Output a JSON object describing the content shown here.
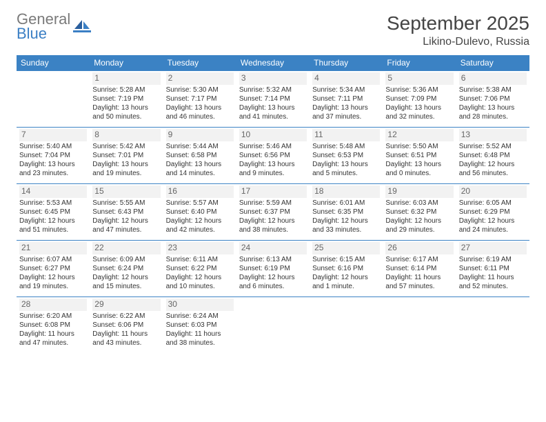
{
  "brand": {
    "line1": "General",
    "line2": "Blue"
  },
  "title": "September 2025",
  "location": "Likino-Dulevo, Russia",
  "colors": {
    "header_bg": "#3b82c4",
    "header_text": "#ffffff",
    "rule": "#3b82c4",
    "daynum_bg": "#f2f2f2",
    "daynum_text": "#666666",
    "body_text": "#333333",
    "logo_gray": "#7a7a7a",
    "logo_blue": "#3b7fc4",
    "page_bg": "#ffffff"
  },
  "typography": {
    "title_fontsize": 28,
    "location_fontsize": 16,
    "header_fontsize": 12,
    "daynum_fontsize": 12,
    "cell_fontsize": 10
  },
  "weekdays": [
    "Sunday",
    "Monday",
    "Tuesday",
    "Wednesday",
    "Thursday",
    "Friday",
    "Saturday"
  ],
  "weeks": [
    [
      {
        "n": "",
        "sr": "",
        "ss": "",
        "dl": ""
      },
      {
        "n": "1",
        "sr": "Sunrise: 5:28 AM",
        "ss": "Sunset: 7:19 PM",
        "dl": "Daylight: 13 hours and 50 minutes."
      },
      {
        "n": "2",
        "sr": "Sunrise: 5:30 AM",
        "ss": "Sunset: 7:17 PM",
        "dl": "Daylight: 13 hours and 46 minutes."
      },
      {
        "n": "3",
        "sr": "Sunrise: 5:32 AM",
        "ss": "Sunset: 7:14 PM",
        "dl": "Daylight: 13 hours and 41 minutes."
      },
      {
        "n": "4",
        "sr": "Sunrise: 5:34 AM",
        "ss": "Sunset: 7:11 PM",
        "dl": "Daylight: 13 hours and 37 minutes."
      },
      {
        "n": "5",
        "sr": "Sunrise: 5:36 AM",
        "ss": "Sunset: 7:09 PM",
        "dl": "Daylight: 13 hours and 32 minutes."
      },
      {
        "n": "6",
        "sr": "Sunrise: 5:38 AM",
        "ss": "Sunset: 7:06 PM",
        "dl": "Daylight: 13 hours and 28 minutes."
      }
    ],
    [
      {
        "n": "7",
        "sr": "Sunrise: 5:40 AM",
        "ss": "Sunset: 7:04 PM",
        "dl": "Daylight: 13 hours and 23 minutes."
      },
      {
        "n": "8",
        "sr": "Sunrise: 5:42 AM",
        "ss": "Sunset: 7:01 PM",
        "dl": "Daylight: 13 hours and 19 minutes."
      },
      {
        "n": "9",
        "sr": "Sunrise: 5:44 AM",
        "ss": "Sunset: 6:58 PM",
        "dl": "Daylight: 13 hours and 14 minutes."
      },
      {
        "n": "10",
        "sr": "Sunrise: 5:46 AM",
        "ss": "Sunset: 6:56 PM",
        "dl": "Daylight: 13 hours and 9 minutes."
      },
      {
        "n": "11",
        "sr": "Sunrise: 5:48 AM",
        "ss": "Sunset: 6:53 PM",
        "dl": "Daylight: 13 hours and 5 minutes."
      },
      {
        "n": "12",
        "sr": "Sunrise: 5:50 AM",
        "ss": "Sunset: 6:51 PM",
        "dl": "Daylight: 13 hours and 0 minutes."
      },
      {
        "n": "13",
        "sr": "Sunrise: 5:52 AM",
        "ss": "Sunset: 6:48 PM",
        "dl": "Daylight: 12 hours and 56 minutes."
      }
    ],
    [
      {
        "n": "14",
        "sr": "Sunrise: 5:53 AM",
        "ss": "Sunset: 6:45 PM",
        "dl": "Daylight: 12 hours and 51 minutes."
      },
      {
        "n": "15",
        "sr": "Sunrise: 5:55 AM",
        "ss": "Sunset: 6:43 PM",
        "dl": "Daylight: 12 hours and 47 minutes."
      },
      {
        "n": "16",
        "sr": "Sunrise: 5:57 AM",
        "ss": "Sunset: 6:40 PM",
        "dl": "Daylight: 12 hours and 42 minutes."
      },
      {
        "n": "17",
        "sr": "Sunrise: 5:59 AM",
        "ss": "Sunset: 6:37 PM",
        "dl": "Daylight: 12 hours and 38 minutes."
      },
      {
        "n": "18",
        "sr": "Sunrise: 6:01 AM",
        "ss": "Sunset: 6:35 PM",
        "dl": "Daylight: 12 hours and 33 minutes."
      },
      {
        "n": "19",
        "sr": "Sunrise: 6:03 AM",
        "ss": "Sunset: 6:32 PM",
        "dl": "Daylight: 12 hours and 29 minutes."
      },
      {
        "n": "20",
        "sr": "Sunrise: 6:05 AM",
        "ss": "Sunset: 6:29 PM",
        "dl": "Daylight: 12 hours and 24 minutes."
      }
    ],
    [
      {
        "n": "21",
        "sr": "Sunrise: 6:07 AM",
        "ss": "Sunset: 6:27 PM",
        "dl": "Daylight: 12 hours and 19 minutes."
      },
      {
        "n": "22",
        "sr": "Sunrise: 6:09 AM",
        "ss": "Sunset: 6:24 PM",
        "dl": "Daylight: 12 hours and 15 minutes."
      },
      {
        "n": "23",
        "sr": "Sunrise: 6:11 AM",
        "ss": "Sunset: 6:22 PM",
        "dl": "Daylight: 12 hours and 10 minutes."
      },
      {
        "n": "24",
        "sr": "Sunrise: 6:13 AM",
        "ss": "Sunset: 6:19 PM",
        "dl": "Daylight: 12 hours and 6 minutes."
      },
      {
        "n": "25",
        "sr": "Sunrise: 6:15 AM",
        "ss": "Sunset: 6:16 PM",
        "dl": "Daylight: 12 hours and 1 minute."
      },
      {
        "n": "26",
        "sr": "Sunrise: 6:17 AM",
        "ss": "Sunset: 6:14 PM",
        "dl": "Daylight: 11 hours and 57 minutes."
      },
      {
        "n": "27",
        "sr": "Sunrise: 6:19 AM",
        "ss": "Sunset: 6:11 PM",
        "dl": "Daylight: 11 hours and 52 minutes."
      }
    ],
    [
      {
        "n": "28",
        "sr": "Sunrise: 6:20 AM",
        "ss": "Sunset: 6:08 PM",
        "dl": "Daylight: 11 hours and 47 minutes."
      },
      {
        "n": "29",
        "sr": "Sunrise: 6:22 AM",
        "ss": "Sunset: 6:06 PM",
        "dl": "Daylight: 11 hours and 43 minutes."
      },
      {
        "n": "30",
        "sr": "Sunrise: 6:24 AM",
        "ss": "Sunset: 6:03 PM",
        "dl": "Daylight: 11 hours and 38 minutes."
      },
      {
        "n": "",
        "sr": "",
        "ss": "",
        "dl": ""
      },
      {
        "n": "",
        "sr": "",
        "ss": "",
        "dl": ""
      },
      {
        "n": "",
        "sr": "",
        "ss": "",
        "dl": ""
      },
      {
        "n": "",
        "sr": "",
        "ss": "",
        "dl": ""
      }
    ]
  ]
}
